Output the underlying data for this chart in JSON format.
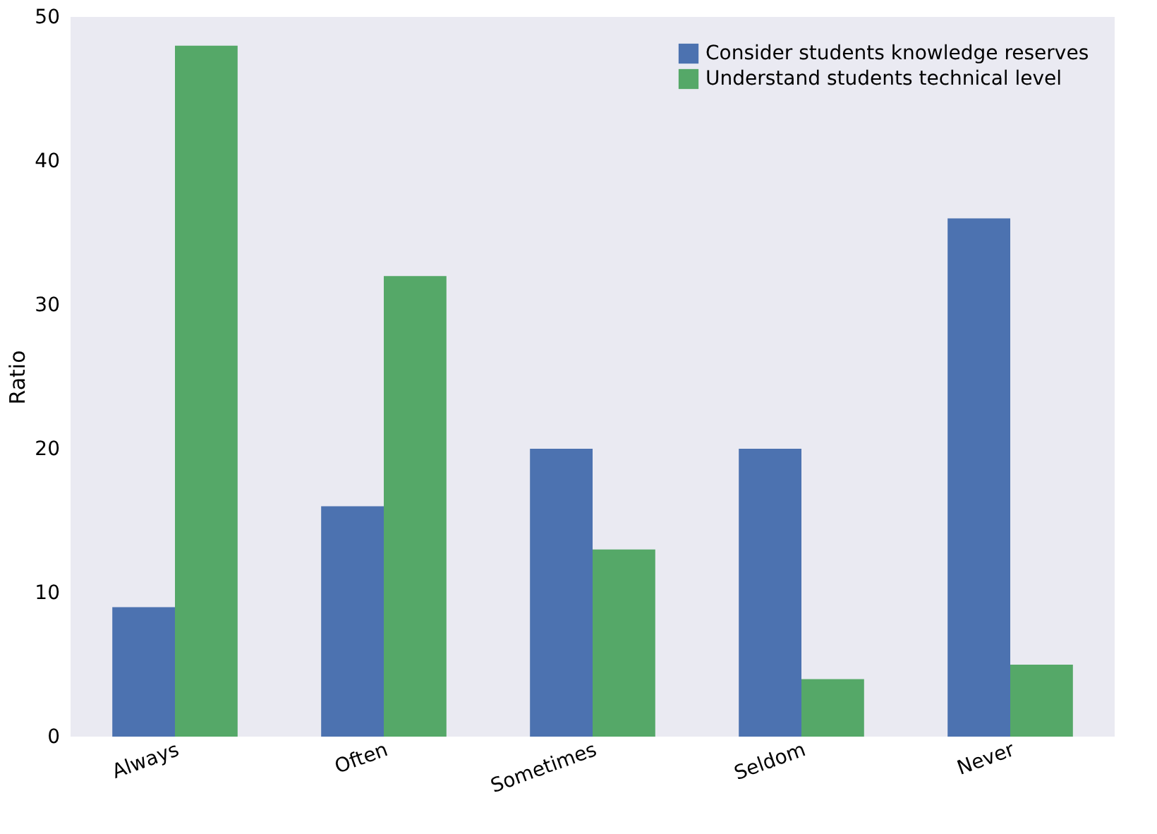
{
  "chart_data": {
    "type": "bar",
    "ylabel": "Ratio",
    "categories": [
      "Always",
      "Often",
      "Sometimes",
      "Seldom",
      "Never"
    ],
    "series": [
      {
        "name": "Consider students knowledge reserves",
        "color": "#4c72b0",
        "values": [
          9,
          16,
          20,
          20,
          36
        ]
      },
      {
        "name": "Understand students technical level",
        "color": "#55a868",
        "values": [
          48,
          32,
          13,
          4,
          5
        ]
      }
    ],
    "ylim": [
      0,
      50
    ],
    "yticks": [
      0,
      10,
      20,
      30,
      40,
      50
    ],
    "grid": false,
    "legend": "top right"
  }
}
